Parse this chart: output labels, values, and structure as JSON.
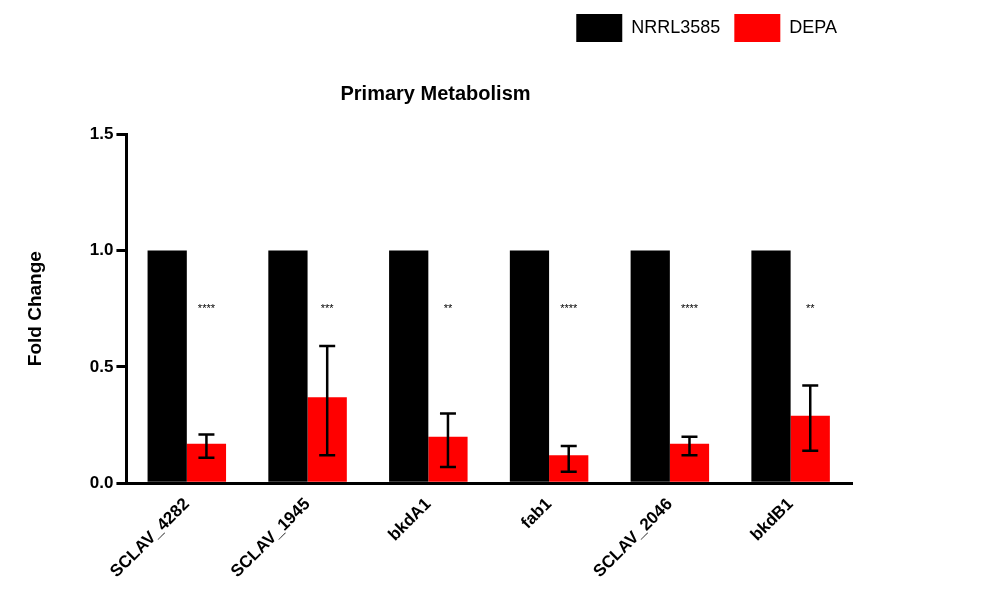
{
  "chart_data": {
    "type": "bar",
    "title": "Primary Metabolism",
    "ylabel": "Fold Change",
    "categories": [
      "SCLAV_4282",
      "SCLAV_1945",
      "bkdA1",
      "fab1",
      "SCLAV_2046",
      "bkdB1"
    ],
    "series": [
      {
        "name": "NRRL3585",
        "color": "#000000",
        "values": [
          1.0,
          1.0,
          1.0,
          1.0,
          1.0,
          1.0
        ]
      },
      {
        "name": "DEPA",
        "color": "#ff0000",
        "values": [
          0.17,
          0.37,
          0.2,
          0.12,
          0.17,
          0.29
        ],
        "errors": [
          [
            0.11,
            0.21
          ],
          [
            0.12,
            0.59
          ],
          [
            0.07,
            0.3
          ],
          [
            0.05,
            0.16
          ],
          [
            0.12,
            0.2
          ],
          [
            0.14,
            0.42
          ]
        ]
      }
    ],
    "annotations": [
      {
        "text": "****",
        "x": "SCLAV_4282",
        "y": 0.75
      },
      {
        "text": "***",
        "x": "SCLAV_1945",
        "y": 0.75
      },
      {
        "text": "**",
        "x": "bkdA1",
        "y": 0.75
      },
      {
        "text": "****",
        "x": "fab1",
        "y": 0.75
      },
      {
        "text": "****",
        "x": "SCLAV_2046",
        "y": 0.75
      },
      {
        "text": "**",
        "x": "bkdB1",
        "y": 0.75
      }
    ],
    "ylim": [
      0,
      1.5
    ],
    "yticks": [
      {
        "value": 0,
        "label": "0.0"
      },
      {
        "value": 0.5,
        "label": "0.5"
      },
      {
        "value": 1,
        "label": "1.0"
      },
      {
        "value": 1.5,
        "label": "1.5"
      }
    ],
    "grid": false,
    "legend": "top right"
  }
}
